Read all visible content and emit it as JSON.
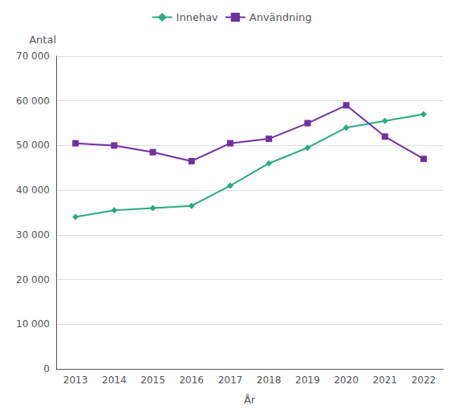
{
  "chart_data": {
    "type": "line",
    "xlabel": "År",
    "ylabel": "Antal",
    "categories": [
      "2013",
      "2014",
      "2015",
      "2016",
      "2017",
      "2018",
      "2019",
      "2020",
      "2021",
      "2022"
    ],
    "series": [
      {
        "name": "Innehav",
        "color": "#2aab85",
        "marker": "diamond",
        "values": [
          34000,
          35500,
          36000,
          36500,
          41000,
          46000,
          49500,
          54000,
          55500,
          57000
        ]
      },
      {
        "name": "Användning",
        "color": "#7030a0",
        "marker": "square",
        "values": [
          50500,
          50000,
          48500,
          46500,
          50500,
          51500,
          55000,
          59000,
          52000,
          47000
        ]
      }
    ],
    "ylim": [
      0,
      70000
    ],
    "yticks": [
      0,
      {
        "value": 10000,
        "label": "10 000"
      },
      {
        "value": 20000,
        "label": "20 000"
      },
      {
        "value": 30000,
        "label": "30 000"
      },
      {
        "value": 40000,
        "label": "40 000"
      },
      {
        "value": 50000,
        "label": "50 000"
      },
      {
        "value": 60000,
        "label": "60 000"
      },
      {
        "value": 70000,
        "label": "70 000"
      }
    ],
    "grid": true,
    "legend": "top"
  }
}
